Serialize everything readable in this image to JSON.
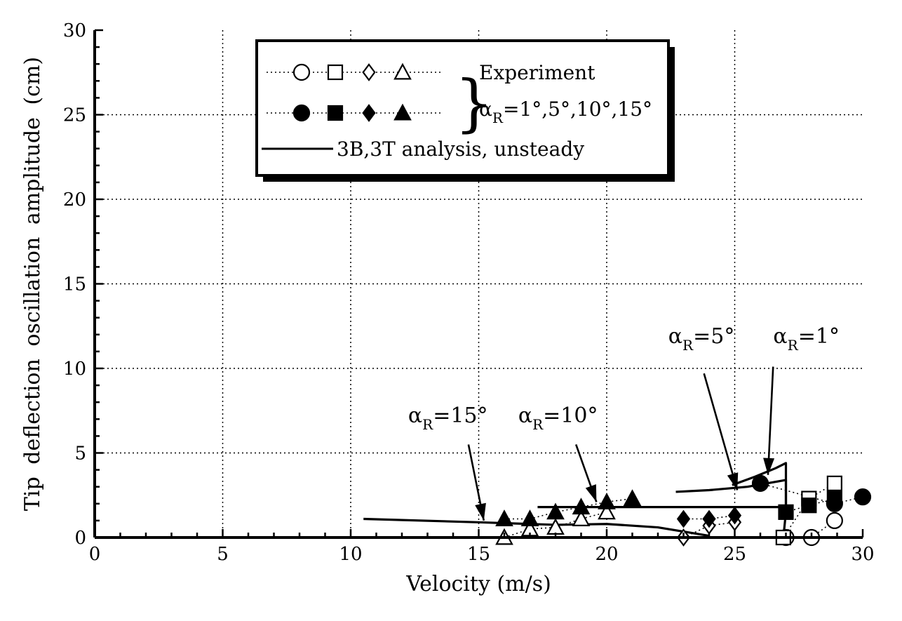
{
  "chart_data": {
    "type": "scatter",
    "xlabel": "Velocity (m/s)",
    "ylabel": "Tip deflection oscillation amplitude (cm)",
    "xlim": [
      0,
      30
    ],
    "ylim": [
      0,
      30
    ],
    "x_ticks": [
      0,
      5,
      10,
      15,
      20,
      25,
      30
    ],
    "y_ticks": [
      0,
      5,
      10,
      15,
      20,
      25,
      30
    ],
    "grid": true,
    "legend": {
      "placement": "top-center",
      "experiment_label": "Experiment",
      "alpha_label": "α",
      "alpha_sub": "R",
      "alpha_values": "=1°,5°,10°,15°",
      "analysis_label": "3B,3T analysis, unsteady"
    },
    "experiment_open": [
      {
        "alpha": 1,
        "marker": "circle-open",
        "points": [
          [
            27,
            0
          ],
          [
            28,
            0
          ],
          [
            28.9,
            1.0
          ]
        ]
      },
      {
        "alpha": 5,
        "marker": "square-open",
        "points": [
          [
            26.9,
            0
          ],
          [
            27.9,
            2.3
          ],
          [
            28.9,
            3.2
          ]
        ]
      },
      {
        "alpha": 10,
        "marker": "diamond-open",
        "points": [
          [
            23,
            0
          ],
          [
            24,
            0.7
          ],
          [
            25,
            0.9
          ]
        ]
      },
      {
        "alpha": 15,
        "marker": "triangle-open",
        "points": [
          [
            16,
            0
          ],
          [
            17,
            0.5
          ],
          [
            18,
            0.6
          ],
          [
            19,
            1.1
          ],
          [
            20,
            1.5
          ]
        ]
      }
    ],
    "experiment_filled": [
      {
        "alpha": 1,
        "marker": "circle-filled",
        "points": [
          [
            26,
            3.2
          ],
          [
            28.9,
            2.0
          ],
          [
            30,
            2.4
          ]
        ]
      },
      {
        "alpha": 5,
        "marker": "square-filled",
        "points": [
          [
            27,
            1.5
          ],
          [
            27.9,
            1.9
          ],
          [
            28.9,
            2.3
          ]
        ]
      },
      {
        "alpha": 10,
        "marker": "diamond-filled",
        "points": [
          [
            23,
            1.1
          ],
          [
            24,
            1.1
          ],
          [
            25,
            1.3
          ]
        ]
      },
      {
        "alpha": 15,
        "marker": "triangle-filled",
        "points": [
          [
            16,
            1.1
          ],
          [
            17,
            1.1
          ],
          [
            18,
            1.5
          ],
          [
            19,
            1.8
          ],
          [
            20,
            2.1
          ],
          [
            21,
            2.3
          ]
        ]
      }
    ],
    "analysis_curves": [
      {
        "alpha": 1,
        "points": [
          [
            24.9,
            3.1
          ],
          [
            25.8,
            3.6
          ],
          [
            26.6,
            4.1
          ],
          [
            27,
            4.4
          ],
          [
            27,
            1.5
          ],
          [
            26.9,
            0
          ]
        ]
      },
      {
        "alpha": 5,
        "points": [
          [
            22.7,
            2.7
          ],
          [
            24,
            2.8
          ],
          [
            25.5,
            3.0
          ],
          [
            27,
            3.4
          ],
          [
            27,
            1.6
          ]
        ]
      },
      {
        "alpha": 10,
        "points": [
          [
            17.3,
            1.8
          ],
          [
            22,
            1.8
          ],
          [
            26.8,
            1.8
          ]
        ]
      },
      {
        "alpha": 15,
        "points": [
          [
            10.5,
            1.1
          ],
          [
            15,
            0.9
          ],
          [
            18,
            0.75
          ],
          [
            20,
            0.8
          ],
          [
            22,
            0.6
          ],
          [
            24,
            0.1
          ]
        ]
      }
    ],
    "annotations": [
      {
        "text": "α",
        "sub": "R",
        "value": "=15°",
        "label_at": [
          13.8,
          6.8
        ],
        "arrow_from": [
          14.6,
          5.5
        ],
        "arrow_to": [
          15.2,
          1.0
        ]
      },
      {
        "text": "α",
        "sub": "R",
        "value": "=10°",
        "label_at": [
          18.1,
          6.8
        ],
        "arrow_from": [
          18.8,
          5.5
        ],
        "arrow_to": [
          19.6,
          2.1
        ]
      },
      {
        "text": "α",
        "sub": "R",
        "value": "=5°",
        "label_at": [
          23.7,
          11.5
        ],
        "arrow_from": [
          23.8,
          9.7
        ],
        "arrow_to": [
          25.1,
          2.8
        ]
      },
      {
        "text": "α",
        "sub": "R",
        "value": "=1°",
        "label_at": [
          27.8,
          11.5
        ],
        "arrow_from": [
          26.5,
          10.1
        ],
        "arrow_to": [
          26.3,
          3.7
        ]
      }
    ]
  }
}
